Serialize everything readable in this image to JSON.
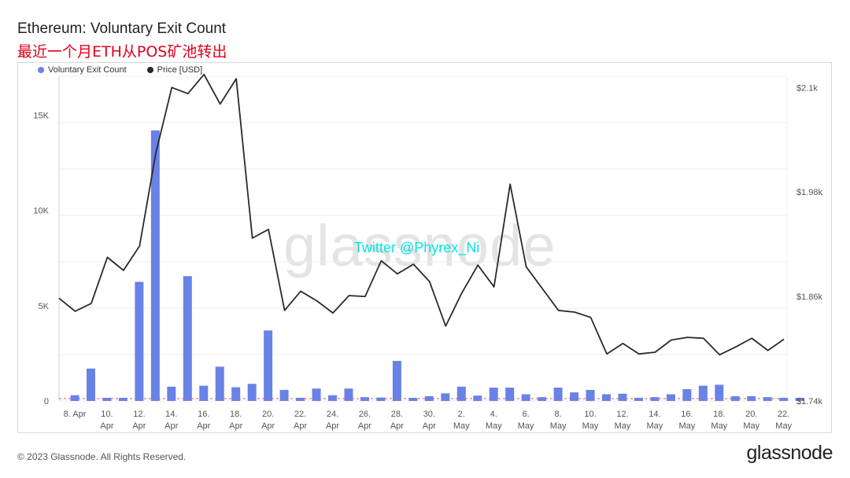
{
  "header": {
    "title": "Ethereum: Voluntary Exit Count",
    "subtitle": "最近一个月ETH从POS矿池转出"
  },
  "watermark": "glassnode",
  "overlay_text": "Twitter @Phyrex_Ni",
  "footer": {
    "copyright": "© 2023 Glassnode. All Rights Reserved.",
    "brand": "glassnode"
  },
  "colors": {
    "bar": "#6a82e6",
    "line": "#2a2a2a",
    "grid": "#ececec",
    "baseline": "#e05050",
    "crosshair": "#c9ccf5"
  },
  "chart_data": {
    "type": "bar",
    "legend": [
      {
        "label": "Voluntary Exit Count",
        "color": "#6a82e6"
      },
      {
        "label": "Price [USD]",
        "color": "#2a2a2a"
      }
    ],
    "legend_position": "top-left",
    "grid": true,
    "y_left": {
      "ticks": [
        "0",
        "5K",
        "10K",
        "15K"
      ],
      "tick_values": [
        0,
        5000,
        10000,
        15000
      ],
      "range": [
        0,
        17000
      ]
    },
    "y_right": {
      "ticks": [
        "$1.74k",
        "$1.86k",
        "$1.98k",
        "$2.1k"
      ],
      "tick_values": [
        1740,
        1860,
        1980,
        2100
      ],
      "range": [
        1740,
        2112
      ]
    },
    "x_ticks": [
      {
        "day": "8. Apr",
        "month": ""
      },
      {
        "day": "10.",
        "month": "Apr"
      },
      {
        "day": "12.",
        "month": "Apr"
      },
      {
        "day": "14.",
        "month": "Apr"
      },
      {
        "day": "16.",
        "month": "Apr"
      },
      {
        "day": "18.",
        "month": "Apr"
      },
      {
        "day": "20.",
        "month": "Apr"
      },
      {
        "day": "22.",
        "month": "Apr"
      },
      {
        "day": "24.",
        "month": "Apr"
      },
      {
        "day": "26.",
        "month": "Apr"
      },
      {
        "day": "28.",
        "month": "Apr"
      },
      {
        "day": "30.",
        "month": "Apr"
      },
      {
        "day": "2.",
        "month": "May"
      },
      {
        "day": "4.",
        "month": "May"
      },
      {
        "day": "6.",
        "month": "May"
      },
      {
        "day": "8.",
        "month": "May"
      },
      {
        "day": "10.",
        "month": "May"
      },
      {
        "day": "12.",
        "month": "May"
      },
      {
        "day": "14.",
        "month": "May"
      },
      {
        "day": "16.",
        "month": "May"
      },
      {
        "day": "18.",
        "month": "May"
      },
      {
        "day": "20.",
        "month": "May"
      },
      {
        "day": "22.",
        "month": "May"
      }
    ],
    "dates": [
      "Apr 8",
      "Apr 9",
      "Apr 10",
      "Apr 11",
      "Apr 12",
      "Apr 13",
      "Apr 14",
      "Apr 15",
      "Apr 16",
      "Apr 17",
      "Apr 18",
      "Apr 19",
      "Apr 20",
      "Apr 21",
      "Apr 22",
      "Apr 23",
      "Apr 24",
      "Apr 25",
      "Apr 26",
      "Apr 27",
      "Apr 28",
      "Apr 29",
      "Apr 30",
      "May 1",
      "May 2",
      "May 3",
      "May 4",
      "May 5",
      "May 6",
      "May 7",
      "May 8",
      "May 9",
      "May 10",
      "May 11",
      "May 12",
      "May 13",
      "May 14",
      "May 15",
      "May 16",
      "May 17",
      "May 18",
      "May 19",
      "May 20",
      "May 21",
      "May 22",
      "May 23"
    ],
    "series": [
      {
        "name": "Voluntary Exit Count",
        "type": "bar",
        "axis": "left",
        "values": [
          300,
          1700,
          20,
          150,
          6250,
          14200,
          750,
          6550,
          800,
          1800,
          720,
          900,
          3700,
          580,
          150,
          650,
          300,
          650,
          200,
          180,
          2100,
          150,
          250,
          400,
          750,
          280,
          700,
          700,
          350,
          200,
          700,
          450,
          580,
          350,
          380,
          150,
          200,
          350,
          620,
          800,
          850,
          250,
          250,
          200,
          150,
          0
        ]
      },
      {
        "name": "Price [USD]",
        "type": "line",
        "axis": "right",
        "values": [
          1858,
          1843,
          1852,
          1905,
          1890,
          1918,
          2024,
          2100,
          2093,
          2115,
          2081,
          2110,
          1927,
          1937,
          1844,
          1866,
          1855,
          1841,
          1861,
          1860,
          1901,
          1886,
          1897,
          1877,
          1826,
          1864,
          1896,
          1871,
          1989,
          1894,
          1869,
          1844,
          1842,
          1836,
          1794,
          1806,
          1794,
          1796,
          1810,
          1813,
          1812,
          1793,
          1802,
          1812,
          1798,
          1811
        ]
      }
    ]
  }
}
